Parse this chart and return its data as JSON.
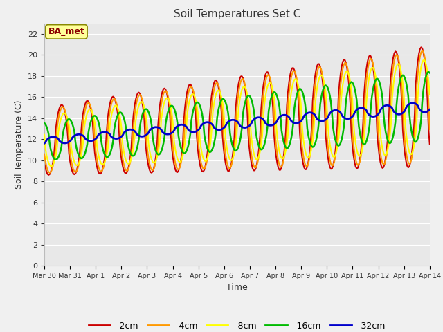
{
  "title": "Soil Temperatures Set C",
  "xlabel": "Time",
  "ylabel": "Soil Temperature (C)",
  "ylim": [
    0,
    23
  ],
  "yticks": [
    0,
    2,
    4,
    6,
    8,
    10,
    12,
    14,
    16,
    18,
    20,
    22
  ],
  "fig_bg_color": "#f0f0f0",
  "plot_bg_color": "#e8e8e8",
  "grid_color": "#ffffff",
  "line_colors": {
    "-2cm": "#cc0000",
    "-4cm": "#ff9900",
    "-8cm": "#ffff00",
    "-16cm": "#00bb00",
    "-32cm": "#0000cc"
  },
  "line_widths": {
    "-2cm": 1.5,
    "-4cm": 1.5,
    "-8cm": 1.5,
    "-16cm": 1.8,
    "-32cm": 2.0
  },
  "annotation_text": "BA_met",
  "annotation_color": "#8b0000",
  "annotation_bg": "#ffff99",
  "tick_labels": [
    "Mar 30",
    "Mar 31",
    "Apr 1",
    "Apr 2",
    "Apr 3",
    "Apr 4",
    "Apr 5",
    "Apr 6",
    "Apr 7",
    "Apr 8",
    "Apr 9",
    "Apr 10",
    "Apr 11",
    "Apr 12",
    "Apr 13",
    "Apr 14"
  ],
  "figsize": [
    6.4,
    4.8
  ],
  "dpi": 100
}
